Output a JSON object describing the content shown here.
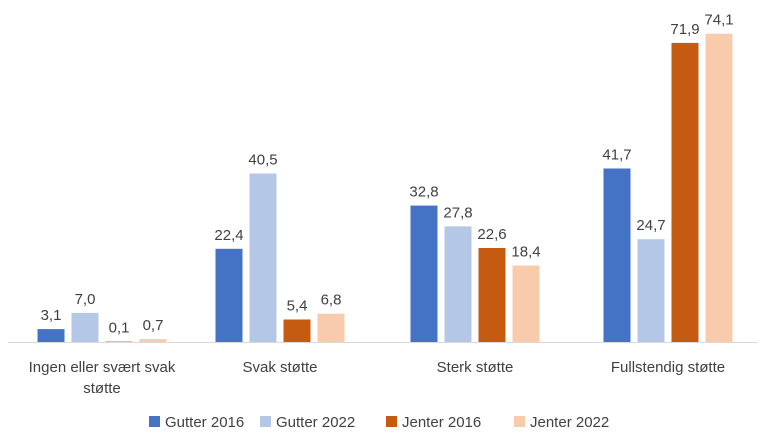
{
  "chart_data": {
    "type": "bar",
    "title": "",
    "xlabel": "",
    "ylabel": "",
    "ylim": [
      0,
      80
    ],
    "grid": false,
    "legend_position": "bottom",
    "categories": [
      [
        "Ingen eller svært svak",
        "støtte"
      ],
      [
        "Svak støtte"
      ],
      [
        "Sterk støtte"
      ],
      [
        "Fullstendig støtte"
      ]
    ],
    "series": [
      {
        "name": "Gutter 2016",
        "color": "#4472C4",
        "values": [
          3.1,
          22.4,
          32.8,
          41.7
        ],
        "labels": [
          "3,1",
          "22,4",
          "32,8",
          "41,7"
        ]
      },
      {
        "name": "Gutter 2022",
        "color": "#B4C7E7",
        "values": [
          7.0,
          40.5,
          27.8,
          24.7
        ],
        "labels": [
          "7,0",
          "40,5",
          "27,8",
          "24,7"
        ]
      },
      {
        "name": "Jenter 2016",
        "color": "#C55A11",
        "values": [
          0.1,
          5.4,
          22.6,
          71.9
        ],
        "labels": [
          "0,1",
          "5,4",
          "22,6",
          "71,9"
        ]
      },
      {
        "name": "Jenter 2022",
        "color": "#F8CBAD",
        "values": [
          0.7,
          6.8,
          18.4,
          74.1
        ],
        "labels": [
          "0,7",
          "6,8",
          "18,4",
          "74,1"
        ]
      }
    ]
  },
  "colors": {
    "axis": "#D9D9D9",
    "text": "#404040"
  }
}
